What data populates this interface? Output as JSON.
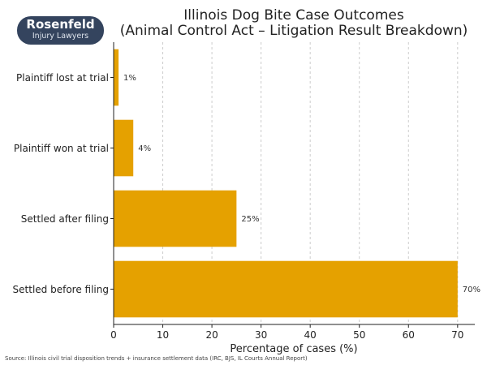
{
  "logo": {
    "line1": "Rosenfeld",
    "line2": "Injury Lawyers"
  },
  "chart_data": {
    "type": "bar",
    "orientation": "horizontal",
    "title": "Illinois Dog Bite Case Outcomes",
    "subtitle": "(Animal Control Act – Litigation Result Breakdown)",
    "categories": [
      "Plaintiff lost at trial",
      "Plaintiff won at trial",
      "Settled after filing",
      "Settled before filing"
    ],
    "values": [
      1,
      4,
      25,
      70
    ],
    "data_labels": [
      "1%",
      "4%",
      "25%",
      "70%"
    ],
    "xlabel": "Percentage of cases (%)",
    "ylabel": "",
    "xlim": [
      0,
      73.5
    ],
    "xticks": [
      0,
      10,
      20,
      30,
      40,
      50,
      60,
      70
    ],
    "grid": "vertical dashed",
    "bar_color": "#E5A100",
    "source": "Source: Illinois civil trial disposition trends + insurance settlement data (IRC, BJS, IL Courts Annual Report)"
  }
}
